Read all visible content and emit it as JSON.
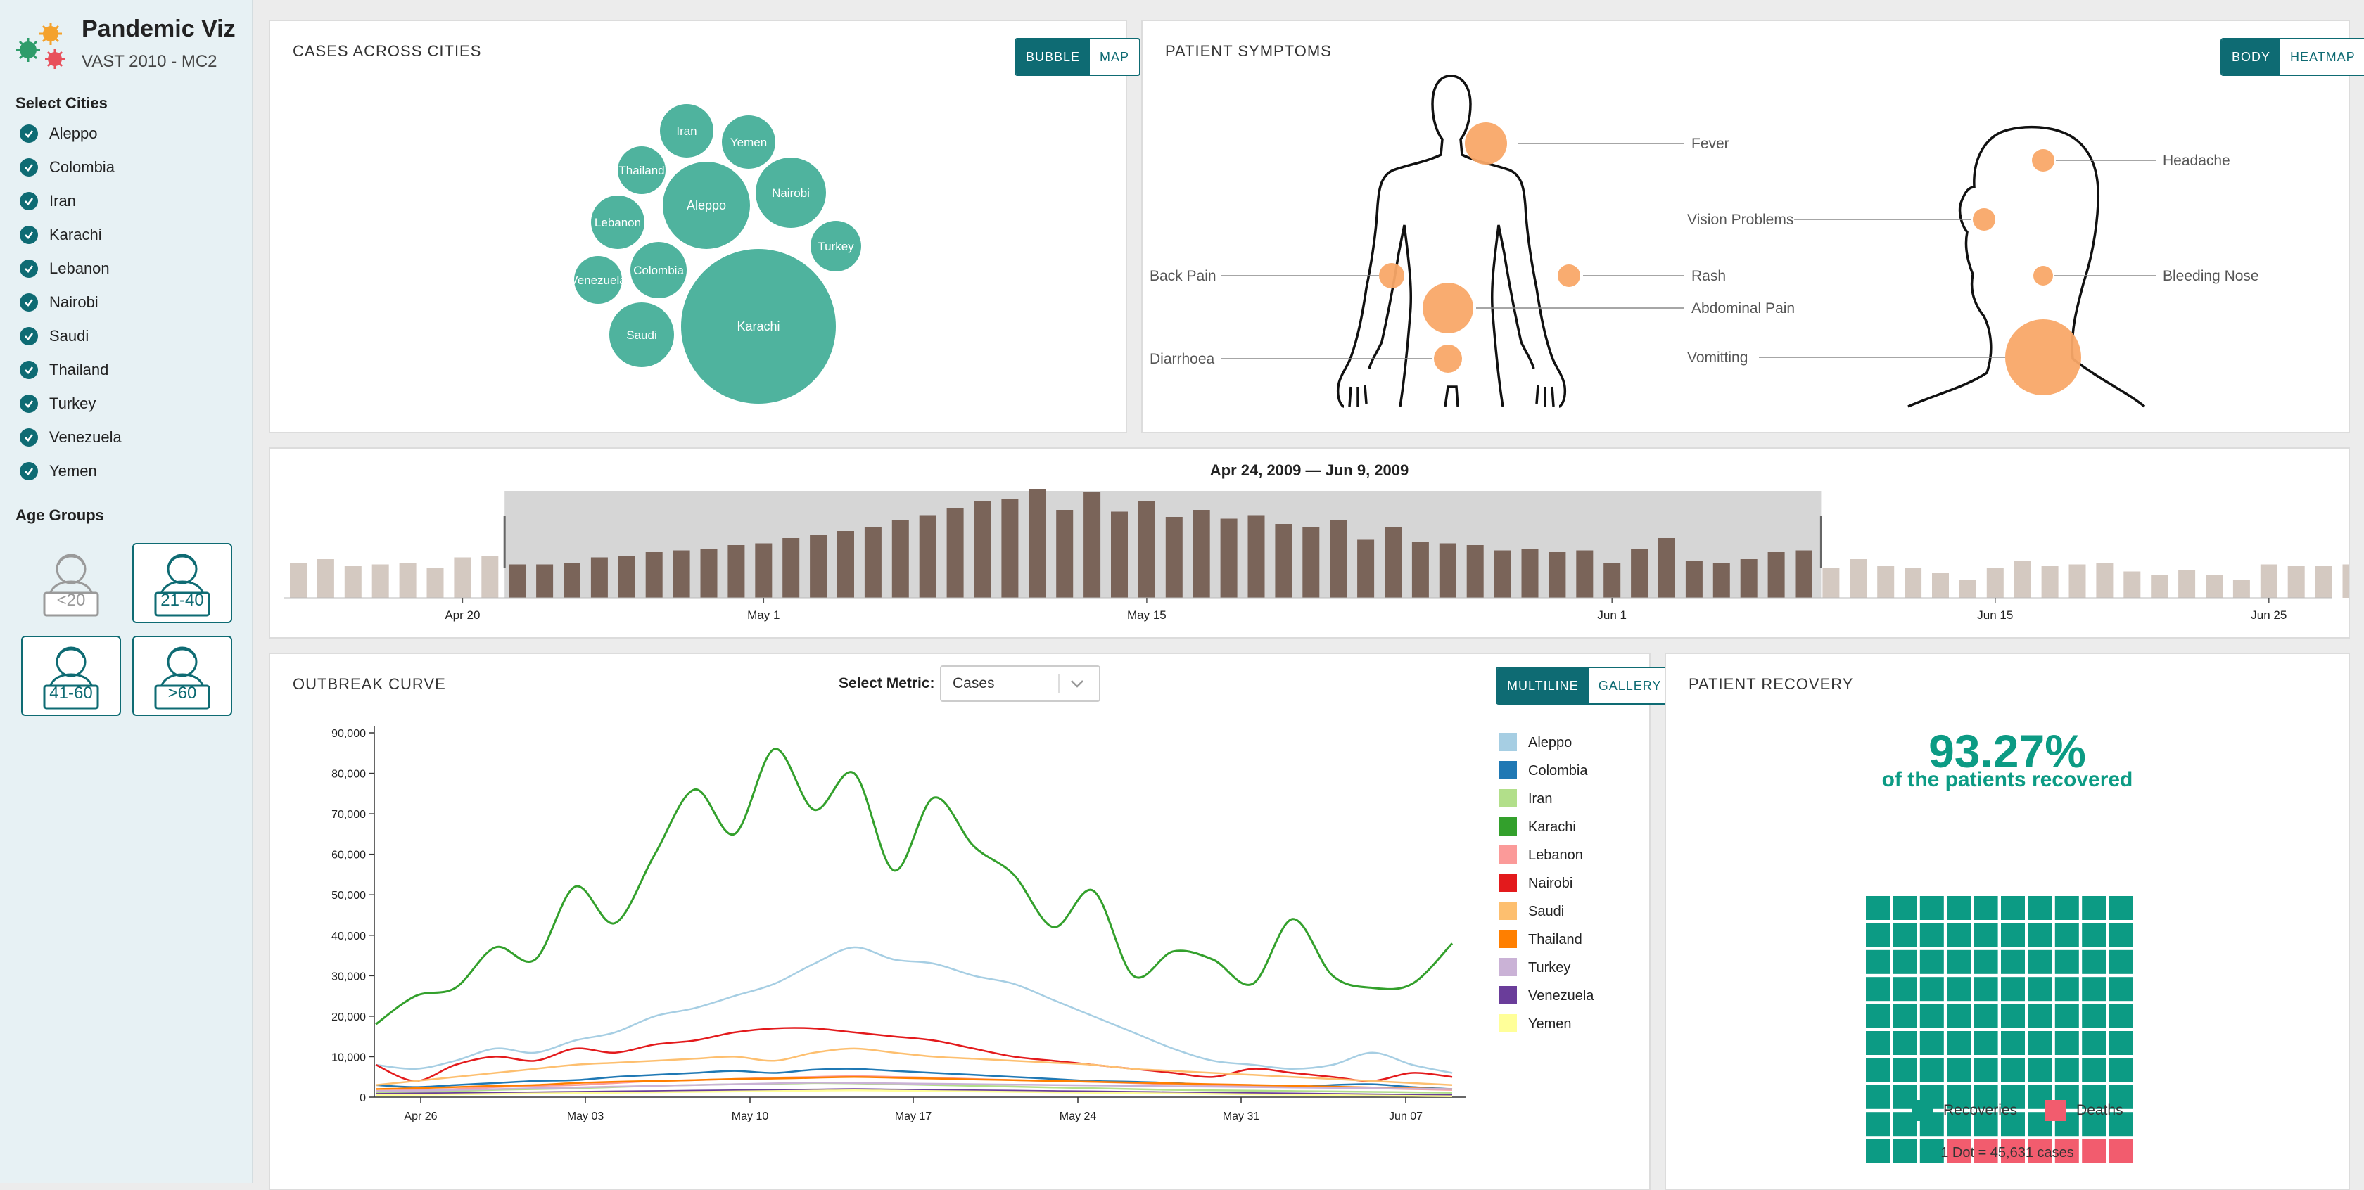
{
  "app": {
    "title": "Pandemic Viz",
    "subtitle": "VAST 2010 - MC2"
  },
  "sidebar": {
    "cities_title": "Select Cities",
    "cities": [
      "Aleppo",
      "Colombia",
      "Iran",
      "Karachi",
      "Lebanon",
      "Nairobi",
      "Saudi",
      "Thailand",
      "Turkey",
      "Venezuela",
      "Yemen"
    ],
    "age_title": "Age Groups",
    "age_groups": [
      {
        "label": "<20",
        "selected": false
      },
      {
        "label": "21-40",
        "selected": true
      },
      {
        "label": "41-60",
        "selected": true
      },
      {
        "label": ">60",
        "selected": true
      }
    ]
  },
  "cities_panel": {
    "title": "Cases Across Cities",
    "toggle": [
      "Bubble",
      "Map"
    ],
    "active": "Bubble",
    "bubbles": [
      "Iran",
      "Yemen",
      "Thailand",
      "Aleppo",
      "Nairobi",
      "Lebanon",
      "Turkey",
      "Venezuela",
      "Colombia",
      "Saudi",
      "Karachi"
    ]
  },
  "symptoms_panel": {
    "title": "Patient Symptoms",
    "toggle": [
      "Body",
      "Heatmap"
    ],
    "active": "Body",
    "body_labels": [
      "Fever",
      "Back Pain",
      "Rash",
      "Abdominal Pain",
      "Diarrhoea"
    ],
    "head_labels": [
      "Headache",
      "Vision Problems",
      "Bleeding Nose",
      "Vomitting"
    ]
  },
  "timeline": {
    "range_label": "Apr 24, 2009  —  Jun 9, 2009",
    "ticks": [
      "Apr 20",
      "May 1",
      "May 15",
      "Jun 1",
      "Jun 15",
      "Jun 25"
    ],
    "selection": {
      "start": "2009-04-24",
      "end": "2009-06-09"
    },
    "daily_values": [
      20,
      22,
      18,
      19,
      20,
      17,
      23,
      24,
      19,
      19,
      20,
      23,
      24,
      26,
      27,
      28,
      30,
      31,
      34,
      36,
      38,
      40,
      44,
      47,
      51,
      55,
      56,
      62,
      50,
      60,
      49,
      55,
      46,
      50,
      45,
      47,
      42,
      40,
      44,
      33,
      40,
      32,
      31,
      30,
      27,
      28,
      26,
      27,
      20,
      28,
      34,
      21,
      20,
      22,
      26,
      27,
      17,
      22,
      18,
      17,
      14,
      10,
      17,
      21,
      18,
      19,
      20,
      15,
      13,
      16,
      13,
      10,
      19,
      18,
      18,
      19,
      20,
      15,
      18,
      13,
      10,
      15,
      21,
      19,
      21,
      19,
      16,
      17
    ]
  },
  "outbreak": {
    "title": "Outbreak Curve",
    "metric_label": "Select Metric:",
    "metric_value": "Cases",
    "toggle": [
      "Multiline",
      "Gallery"
    ],
    "active": "Multiline"
  },
  "recovery": {
    "title": "Patient Recovery",
    "percent": "93.27%",
    "caption": "of the patients recovered",
    "recovered_fraction": 0.9327,
    "legend": [
      "Recoveries",
      "Deaths"
    ],
    "dot_note": "1 Dot = 45,631 cases",
    "colors": {
      "recovery": "#0c9b84",
      "death": "#f25c6e"
    }
  },
  "chart_data": [
    {
      "type": "bar",
      "title": "",
      "x": [
        "Apr 14",
        "Apr 15",
        "Apr 16",
        "Apr 17",
        "Apr 18",
        "Apr 19",
        "Apr 20",
        "Apr 21",
        "Apr 22",
        "Apr 23",
        "Apr 24",
        "Apr 25",
        "Apr 26",
        "Apr 27",
        "Apr 28",
        "Apr 29",
        "Apr 30",
        "May 1",
        "May 2",
        "May 3",
        "May 4",
        "May 5",
        "May 6",
        "May 7",
        "May 8",
        "May 9",
        "May 10",
        "May 11",
        "May 12",
        "May 13",
        "May 14",
        "May 15",
        "May 16",
        "May 17",
        "May 18",
        "May 19",
        "May 20",
        "May 21",
        "May 22",
        "May 23",
        "May 24",
        "May 25",
        "May 26",
        "May 27",
        "May 28",
        "May 29",
        "May 30",
        "May 31",
        "Jun 1",
        "Jun 2",
        "Jun 3",
        "Jun 4",
        "Jun 5",
        "Jun 6",
        "Jun 7",
        "Jun 8",
        "Jun 9",
        "Jun 10",
        "Jun 11",
        "Jun 12",
        "Jun 13",
        "Jun 14",
        "Jun 15",
        "Jun 16",
        "Jun 17",
        "Jun 18",
        "Jun 19",
        "Jun 20",
        "Jun 21",
        "Jun 22",
        "Jun 23",
        "Jun 24",
        "Jun 25",
        "Jun 26",
        "Jun 27",
        "Jun 28"
      ],
      "values": [
        20,
        22,
        18,
        19,
        20,
        17,
        23,
        24,
        19,
        19,
        20,
        23,
        24,
        26,
        27,
        28,
        30,
        31,
        34,
        36,
        38,
        40,
        44,
        47,
        51,
        55,
        56,
        62,
        50,
        60,
        49,
        55,
        46,
        50,
        45,
        47,
        42,
        40,
        44,
        33,
        40,
        32,
        31,
        30,
        27,
        28,
        26,
        27,
        20,
        28,
        34,
        21,
        20,
        22,
        26,
        27,
        17,
        22,
        18,
        17,
        14,
        10,
        17,
        21,
        18,
        19,
        20,
        15,
        13,
        16,
        13,
        10,
        19,
        18,
        18,
        19
      ],
      "selected_range": [
        "Apr 24",
        "Jun 9"
      ]
    },
    {
      "type": "line",
      "title": "",
      "ylim": [
        0,
        90000
      ],
      "yticks": [
        "0",
        "10,000",
        "20,000",
        "30,000",
        "40,000",
        "50,000",
        "60,000",
        "70,000",
        "80,000",
        "90,000"
      ],
      "xticks": [
        "Apr 26",
        "May 03",
        "May 10",
        "May 17",
        "May 24",
        "May 31",
        "Jun 07"
      ],
      "x_start": "2009-04-24",
      "x_end": "2009-06-09",
      "series": [
        {
          "name": "Aleppo",
          "color": "#a6cee3",
          "values": [
            8000,
            7000,
            9000,
            12000,
            11000,
            14000,
            16000,
            20000,
            22000,
            25000,
            28000,
            33000,
            37000,
            34000,
            33000,
            30000,
            28000,
            24000,
            20000,
            16000,
            12000,
            9000,
            8000,
            7000,
            8000,
            11000,
            8000,
            6000
          ]
        },
        {
          "name": "Colombia",
          "color": "#1f78b4",
          "values": [
            3000,
            2500,
            3000,
            3500,
            4000,
            4200,
            5000,
            5500,
            6000,
            6500,
            6000,
            6800,
            7000,
            6500,
            6000,
            5500,
            5000,
            4500,
            4000,
            3800,
            3500,
            3000,
            2800,
            2500,
            3000,
            3200,
            2500,
            2000
          ]
        },
        {
          "name": "Iran",
          "color": "#b2df8a",
          "values": [
            1000,
            1200,
            1500,
            1800,
            2000,
            2200,
            2500,
            2800,
            3000,
            3200,
            3300,
            3500,
            3400,
            3200,
            3000,
            2800,
            2600,
            2400,
            2200,
            2000,
            1800,
            1700,
            1600,
            1500,
            1400,
            1300,
            1200,
            1100
          ]
        },
        {
          "name": "Karachi",
          "color": "#33a02c",
          "values": [
            18000,
            25000,
            27000,
            37000,
            34000,
            52000,
            43000,
            60000,
            76000,
            65000,
            86000,
            71000,
            80000,
            56000,
            74000,
            62000,
            55000,
            42000,
            51000,
            30000,
            36000,
            34000,
            28000,
            44000,
            30000,
            27000,
            28000,
            38000
          ]
        },
        {
          "name": "Lebanon",
          "color": "#fb9a99",
          "values": [
            1500,
            1800,
            2000,
            2500,
            2800,
            3000,
            3500,
            4000,
            4200,
            4500,
            4800,
            5000,
            5200,
            5000,
            4800,
            4500,
            4200,
            4000,
            3800,
            3500,
            3200,
            3000,
            2800,
            2600,
            2400,
            2200,
            2000,
            1800
          ]
        },
        {
          "name": "Nairobi",
          "color": "#e31a1c",
          "values": [
            8000,
            4000,
            8000,
            10000,
            9000,
            12000,
            11000,
            13000,
            14000,
            16000,
            17000,
            17000,
            16000,
            15000,
            14000,
            12000,
            10000,
            9000,
            8000,
            7000,
            6000,
            5000,
            7000,
            6000,
            5000,
            4000,
            6000,
            5000
          ]
        },
        {
          "name": "Saudi",
          "color": "#fdbf6f",
          "values": [
            3000,
            4000,
            5000,
            6000,
            7000,
            8000,
            8500,
            9000,
            9500,
            10000,
            9000,
            11000,
            12000,
            11000,
            10000,
            9500,
            9000,
            8500,
            8000,
            7000,
            6500,
            6000,
            5500,
            5000,
            4500,
            4000,
            3500,
            3000
          ]
        },
        {
          "name": "Thailand",
          "color": "#ff7f00",
          "values": [
            2000,
            2200,
            2500,
            2800,
            3000,
            3500,
            3800,
            4000,
            4200,
            4500,
            4600,
            4800,
            5000,
            4800,
            4600,
            4400,
            4200,
            4000,
            3800,
            3600,
            3400,
            3200,
            3000,
            2800,
            2600,
            2400,
            2200,
            2000
          ]
        },
        {
          "name": "Turkey",
          "color": "#cab2d6",
          "values": [
            1500,
            1600,
            1800,
            2000,
            2200,
            2400,
            2600,
            2800,
            3000,
            3200,
            3400,
            3600,
            3500,
            3400,
            3300,
            3200,
            3100,
            3000,
            2900,
            2800,
            2700,
            2600,
            2500,
            2400,
            2300,
            2200,
            2100,
            2000
          ]
        },
        {
          "name": "Venezuela",
          "color": "#6a3d9a",
          "values": [
            800,
            900,
            1000,
            1100,
            1200,
            1300,
            1400,
            1500,
            1600,
            1700,
            1800,
            1900,
            2000,
            1900,
            1800,
            1700,
            1600,
            1500,
            1400,
            1300,
            1200,
            1100,
            1000,
            900,
            800,
            700,
            600,
            500
          ]
        },
        {
          "name": "Yemen",
          "color": "#ffff99",
          "values": [
            500,
            600,
            700,
            800,
            900,
            1000,
            1100,
            1200,
            1300,
            1400,
            1500,
            1600,
            1700,
            1600,
            1500,
            1400,
            1300,
            1200,
            1100,
            1000,
            900,
            800,
            700,
            600,
            500,
            400,
            300,
            200
          ]
        }
      ]
    }
  ]
}
